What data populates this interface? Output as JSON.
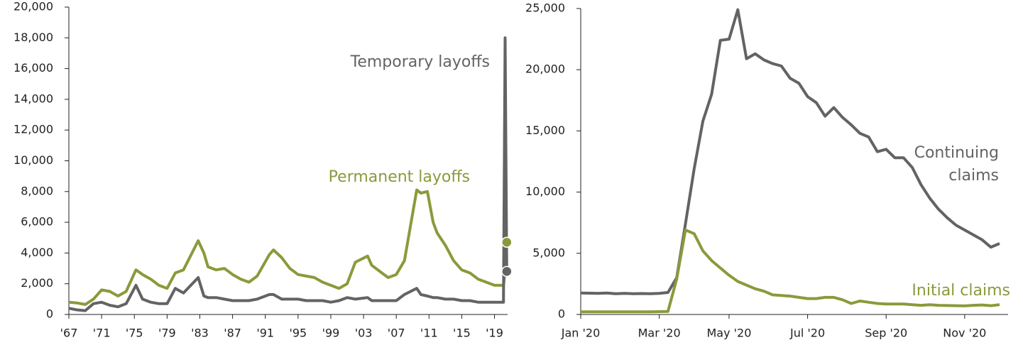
{
  "chart_data": [
    {
      "type": "line",
      "x": [
        1967,
        1968,
        1969,
        1970,
        1971,
        1972,
        1973,
        1974,
        1975.2,
        1976,
        1977,
        1978,
        1979,
        1980,
        1981,
        1982.8,
        1983.5,
        1984,
        1985,
        1986,
        1987,
        1988,
        1989,
        1990,
        1991.5,
        1992,
        1993,
        1994,
        1995,
        1996,
        1997,
        1998,
        1999,
        2000,
        2001,
        2002,
        2003.5,
        2004,
        2005,
        2006,
        2007,
        2008,
        2009.5,
        2010,
        2010.8,
        2011.5,
        2012,
        2013,
        2014,
        2015,
        2016,
        2017,
        2018,
        2019,
        2020.1,
        2020.3,
        2020.5
      ],
      "series": [
        {
          "name": "Permanent layoffs",
          "color": "#8a9a3b",
          "values": [
            800,
            750,
            650,
            1000,
            1600,
            1500,
            1200,
            1500,
            2900,
            2600,
            2300,
            1900,
            1700,
            2700,
            2900,
            4800,
            4000,
            3100,
            2900,
            3000,
            2600,
            2300,
            2100,
            2500,
            3900,
            4200,
            3700,
            3000,
            2600,
            2500,
            2400,
            2100,
            1900,
            1700,
            2000,
            3400,
            3800,
            3200,
            2800,
            2400,
            2600,
            3500,
            8100,
            7900,
            8000,
            6000,
            5300,
            4500,
            3500,
            2900,
            2700,
            2300,
            2100,
            1900,
            1900,
            2800,
            4700
          ]
        },
        {
          "name": "Temporary layoffs",
          "color": "#636363",
          "values": [
            400,
            300,
            250,
            700,
            800,
            600,
            500,
            700,
            1900,
            1000,
            800,
            700,
            700,
            1700,
            1400,
            2400,
            1200,
            1100,
            1100,
            1000,
            900,
            900,
            900,
            1000,
            1300,
            1300,
            1000,
            1000,
            1000,
            900,
            900,
            900,
            800,
            900,
            1100,
            1000,
            1100,
            900,
            900,
            900,
            900,
            1300,
            1700,
            1300,
            1200,
            1100,
            1100,
            1000,
            1000,
            900,
            900,
            800,
            800,
            800,
            800,
            18000,
            2800
          ]
        }
      ],
      "xlim": [
        1967,
        2020.6
      ],
      "xticks": [
        {
          "value": 1967,
          "label": "'67"
        },
        {
          "value": 1971,
          "label": "'71"
        },
        {
          "value": 1975,
          "label": "'75"
        },
        {
          "value": 1979,
          "label": "'79"
        },
        {
          "value": 1983,
          "label": "'83"
        },
        {
          "value": 1987,
          "label": "'87"
        },
        {
          "value": 1991,
          "label": "'91"
        },
        {
          "value": 1995,
          "label": "'95"
        },
        {
          "value": 1999,
          "label": "'99"
        },
        {
          "value": 2003,
          "label": "'03"
        },
        {
          "value": 2007,
          "label": "'07"
        },
        {
          "value": 2011,
          "label": "'11"
        },
        {
          "value": 2015,
          "label": "'15"
        },
        {
          "value": 2019,
          "label": "'19"
        }
      ],
      "ylim": [
        0,
        20000
      ],
      "yticks": [
        0,
        {
          "value": 2000,
          "label": "2,000"
        },
        {
          "value": 4000,
          "label": "4,000"
        },
        {
          "value": 6000,
          "label": "6,000"
        },
        {
          "value": 8000,
          "label": "8,000"
        },
        {
          "value": 10000,
          "label": "10,000"
        },
        {
          "value": 12000,
          "label": "12,000"
        },
        {
          "value": 14000,
          "label": "14,000"
        },
        {
          "value": 16000,
          "label": "16,000"
        },
        {
          "value": 18000,
          "label": "18,000"
        },
        {
          "value": 20000,
          "label": "20,000"
        }
      ],
      "grid": false
    },
    {
      "type": "line",
      "categories": [
        "Jan '20",
        null,
        null,
        null,
        null,
        null,
        null,
        null,
        null,
        "Mar '20",
        null,
        null,
        null,
        null,
        null,
        null,
        null,
        "May '20",
        null,
        null,
        null,
        null,
        null,
        null,
        null,
        null,
        "Jul '20",
        null,
        null,
        null,
        null,
        null,
        null,
        null,
        null,
        "Sep '20",
        null,
        null,
        null,
        null,
        null,
        null,
        null,
        null,
        "Nov '20",
        null,
        null,
        null,
        null
      ],
      "series": [
        {
          "name": "Continuing claims",
          "color": "#636363",
          "values": [
            1750,
            1740,
            1720,
            1750,
            1700,
            1720,
            1700,
            1710,
            1700,
            1720,
            1800,
            3000,
            7400,
            11900,
            15800,
            18000,
            22400,
            22500,
            24900,
            20900,
            21300,
            20800,
            20500,
            20300,
            19300,
            18900,
            17800,
            17300,
            16200,
            16900,
            16100,
            15500,
            14800,
            14500,
            13300,
            13500,
            12800,
            12800,
            12000,
            10600,
            9500,
            8600,
            7900,
            7300,
            6900,
            6500,
            6100,
            5500,
            5800
          ]
        },
        {
          "name": "Initial claims",
          "color": "#8a9a3b",
          "values": [
            220,
            220,
            220,
            220,
            220,
            220,
            220,
            220,
            220,
            230,
            250,
            2900,
            6900,
            6600,
            5200,
            4400,
            3800,
            3200,
            2700,
            2400,
            2100,
            1900,
            1600,
            1550,
            1500,
            1400,
            1300,
            1300,
            1400,
            1400,
            1200,
            900,
            1100,
            1000,
            900,
            850,
            850,
            850,
            800,
            750,
            800,
            750,
            730,
            720,
            700,
            750,
            780,
            720,
            800
          ]
        }
      ],
      "ylim": [
        0,
        25000
      ],
      "yticks": [
        0,
        {
          "value": 5000,
          "label": "5,000"
        },
        {
          "value": 10000,
          "label": "10,000"
        },
        {
          "value": 15000,
          "label": "15,000"
        },
        {
          "value": 20000,
          "label": "20,000"
        },
        {
          "value": 25000,
          "label": "25,000"
        }
      ],
      "grid": false
    }
  ]
}
